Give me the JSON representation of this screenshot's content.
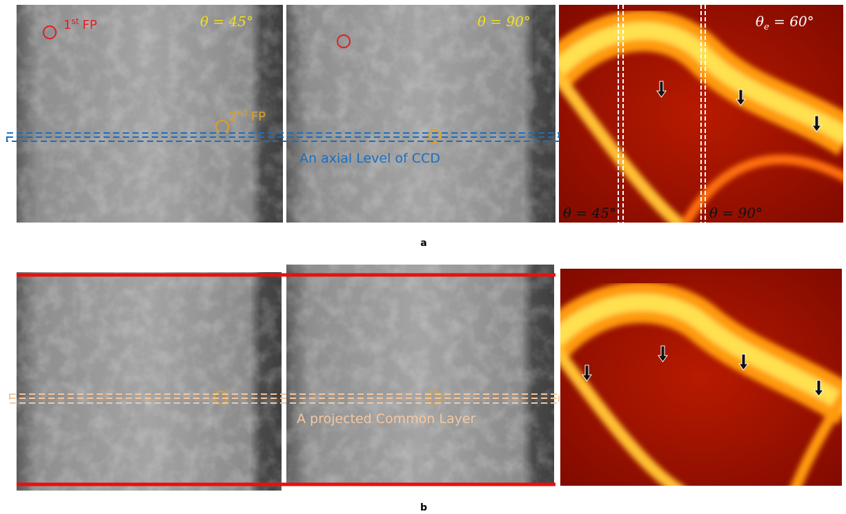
{
  "panel_a": {
    "label": "a",
    "first_fp": {
      "number": "1",
      "superscript": "st",
      "text": "FP"
    },
    "second_fp": {
      "number": "2",
      "superscript": "nd",
      "text": "FP"
    },
    "angle_1": "θ = 45°",
    "angle_2": "θ = 90°",
    "equal_angle": {
      "base": "θ",
      "subscript": "e",
      "rest": " = 60°"
    },
    "window_1": "θ = 45°",
    "window_2": "θ = 90°",
    "level_label": "An axial Level of CCD"
  },
  "panel_b": {
    "label": "b",
    "layer_label": "A projected Common Layer"
  }
}
